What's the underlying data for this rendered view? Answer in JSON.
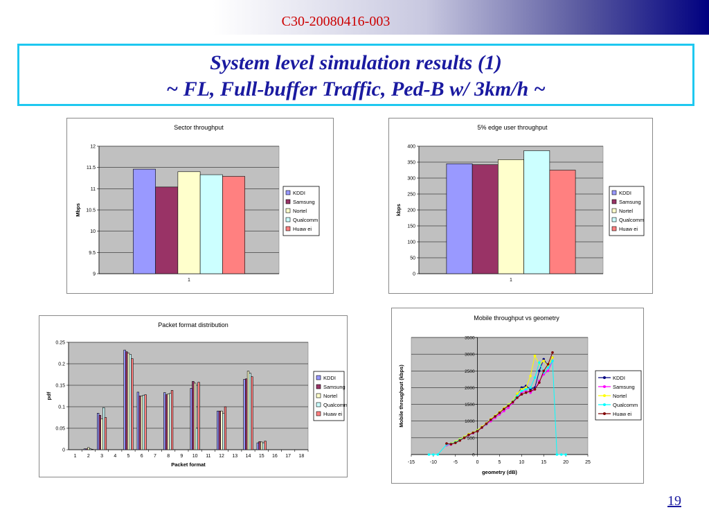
{
  "slide": {
    "doc_id": "C30-20080416-003",
    "title_line1": "System level simulation results (1)",
    "title_line2": "~ FL, Full-buffer Traffic, Ped-B w/ 3km/h ~",
    "page_number": "19"
  },
  "colors": {
    "KDDI": "#9999ff",
    "Samsung": "#993366",
    "Nortel": "#ffffcc",
    "Qualcomm": "#ccffff",
    "Huawei": "#ff8080",
    "plot_bg": "#c0c0c0",
    "title_border": "#1ec8f0",
    "title_text": "#1a1aa0",
    "doc_id_text": "#cc0000",
    "line_KDDI": "#000080",
    "line_Samsung": "#ff00ff",
    "line_Nortel": "#ffff00",
    "line_Qualcomm": "#00ffff",
    "line_Huawei": "#800000"
  },
  "chart_data": [
    {
      "id": "sector",
      "type": "bar",
      "title": "Sector throughput",
      "xlabel": "",
      "ylabel": "Mbps",
      "categories": [
        "1"
      ],
      "ylim": [
        9,
        12
      ],
      "yticks": [
        "9",
        "9.5",
        "10",
        "10.5",
        "11",
        "11.5",
        "12"
      ],
      "grid": true,
      "legend": "right",
      "series": [
        {
          "name": "KDDI",
          "values": [
            11.46
          ]
        },
        {
          "name": "Samsung",
          "values": [
            11.04
          ]
        },
        {
          "name": "Nortel",
          "values": [
            11.4
          ]
        },
        {
          "name": "Qualcomm",
          "values": [
            11.33
          ]
        },
        {
          "name": "Huaw ei",
          "values": [
            11.29
          ]
        }
      ]
    },
    {
      "id": "edge",
      "type": "bar",
      "title": "5% edge user throughput",
      "xlabel": "",
      "ylabel": "kbps",
      "categories": [
        "1"
      ],
      "ylim": [
        0,
        400
      ],
      "yticks": [
        "0",
        "50",
        "100",
        "150",
        "200",
        "250",
        "300",
        "350",
        "400"
      ],
      "grid": true,
      "legend": "right",
      "series": [
        {
          "name": "KDDI",
          "values": [
            345
          ]
        },
        {
          "name": "Samsung",
          "values": [
            342
          ]
        },
        {
          "name": "Nortel",
          "values": [
            358
          ]
        },
        {
          "name": "Qualcomm",
          "values": [
            386
          ]
        },
        {
          "name": "Huaw ei",
          "values": [
            325
          ]
        }
      ]
    },
    {
      "id": "packet",
      "type": "bar",
      "title": "Packet format distribution",
      "xlabel": "Packet format",
      "ylabel": "pdf",
      "categories": [
        "1",
        "2",
        "3",
        "4",
        "5",
        "6",
        "7",
        "8",
        "9",
        "10",
        "11",
        "12",
        "13",
        "14",
        "15",
        "16",
        "17",
        "18"
      ],
      "ylim": [
        0,
        0.25
      ],
      "yticks": [
        "0",
        "0.05",
        "0.1",
        "0.15",
        "0.2",
        "0.25"
      ],
      "grid": true,
      "legend": "right",
      "series": [
        {
          "name": "KDDI",
          "values": [
            0,
            0.002,
            0.085,
            0,
            0.232,
            0.134,
            0,
            0.133,
            0,
            0.143,
            0,
            0.09,
            0,
            0.164,
            0.016,
            0,
            0,
            0
          ]
        },
        {
          "name": "Samsung",
          "values": [
            0,
            0.002,
            0.08,
            0,
            0.228,
            0.125,
            0,
            0.128,
            0,
            0.159,
            0,
            0.09,
            0,
            0.165,
            0.019,
            0,
            0,
            0
          ]
        },
        {
          "name": "Nortel",
          "values": [
            0,
            0.005,
            0.072,
            0,
            0.225,
            0.125,
            0,
            0.13,
            0,
            0.155,
            0,
            0.09,
            0,
            0.183,
            0.018,
            0,
            0,
            0
          ]
        },
        {
          "name": "Qualcomm",
          "values": [
            0,
            0.002,
            0.098,
            0,
            0.222,
            0.127,
            0,
            0.131,
            0,
            0.05,
            0,
            0.085,
            0,
            0.178,
            0.016,
            0,
            0,
            0
          ]
        },
        {
          "name": "Huaw ei",
          "values": [
            0,
            0.001,
            0.075,
            0,
            0.212,
            0.128,
            0,
            0.138,
            0,
            0.157,
            0,
            0.1,
            0,
            0.17,
            0.02,
            0,
            0,
            0
          ]
        }
      ]
    },
    {
      "id": "mobile",
      "type": "line",
      "title": "Mobile throughput vs geometry",
      "xlabel": "geometry (dB)",
      "ylabel": "Mobile throughput (kbps)",
      "xlim": [
        -15,
        25
      ],
      "ylim": [
        0,
        3500
      ],
      "xticks": [
        "-15",
        "-10",
        "-5",
        "0",
        "5",
        "10",
        "15",
        "20",
        "25"
      ],
      "yticks": [
        "0",
        "500",
        "1000",
        "1500",
        "2000",
        "2500",
        "3000",
        "3500"
      ],
      "grid": true,
      "legend": "right",
      "series": [
        {
          "name": "KDDI",
          "marker": "diamond",
          "x": [
            -7,
            -6,
            -5,
            -4,
            -3,
            -2,
            -1,
            0,
            1,
            2,
            3,
            4,
            5,
            6,
            7,
            8,
            9,
            10,
            11,
            12,
            13,
            14,
            15,
            16,
            17
          ],
          "y": [
            310,
            320,
            380,
            450,
            520,
            600,
            650,
            720,
            820,
            920,
            1050,
            1150,
            1260,
            1380,
            1480,
            1580,
            1800,
            2000,
            2050,
            1950,
            2000,
            2500,
            2850,
            2650,
            2900
          ]
        },
        {
          "name": "Samsung",
          "marker": "square",
          "x": [
            -7,
            -6,
            -5,
            -4,
            -3,
            -2,
            -1,
            0,
            1,
            2,
            3,
            4,
            5,
            6,
            7,
            8,
            9,
            10,
            11,
            12,
            13,
            14,
            15,
            16,
            17
          ],
          "y": [
            280,
            300,
            360,
            430,
            500,
            580,
            640,
            700,
            800,
            900,
            1000,
            1100,
            1200,
            1300,
            1400,
            1550,
            1700,
            1850,
            1900,
            1850,
            1950,
            2200,
            2400,
            2500,
            2800
          ]
        },
        {
          "name": "Nortel",
          "marker": "triangle",
          "x": [
            -7,
            -6,
            -5,
            -4,
            -3,
            -2,
            -1,
            0,
            1,
            2,
            3,
            4,
            5,
            6,
            7,
            8,
            9,
            10,
            11,
            12,
            13,
            14,
            15,
            16,
            17
          ],
          "y": [
            300,
            330,
            390,
            460,
            530,
            610,
            660,
            730,
            830,
            930,
            1060,
            1160,
            1270,
            1390,
            1490,
            1600,
            1820,
            1950,
            2000,
            2350,
            2950,
            2700,
            2800,
            2650,
            2900
          ]
        },
        {
          "name": "Qualcomm",
          "marker": "cross",
          "x": [
            -11,
            -10,
            -9,
            -7,
            -6,
            -5,
            -4,
            -3,
            -2,
            -1,
            0,
            1,
            2,
            3,
            4,
            5,
            6,
            7,
            8,
            9,
            10,
            11,
            12,
            13,
            14,
            15,
            16,
            17,
            18,
            19,
            20
          ],
          "y": [
            0,
            0,
            0,
            300,
            320,
            370,
            440,
            510,
            590,
            650,
            710,
            810,
            910,
            1040,
            1140,
            1250,
            1360,
            1470,
            1580,
            1750,
            1900,
            1950,
            2000,
            2300,
            2750,
            2450,
            2600,
            2800,
            0,
            0,
            0
          ]
        },
        {
          "name": "Huaw ei",
          "marker": "circle",
          "x": [
            -7,
            -6,
            -5,
            -4,
            -3,
            -2,
            -1,
            0,
            1,
            2,
            3,
            4,
            5,
            6,
            7,
            8,
            9,
            10,
            11,
            12,
            13,
            14,
            15,
            16,
            17
          ],
          "y": [
            330,
            310,
            350,
            420,
            500,
            590,
            650,
            700,
            810,
            920,
            1040,
            1140,
            1250,
            1360,
            1460,
            1570,
            1700,
            1800,
            1850,
            1900,
            1950,
            2150,
            2500,
            2700,
            3050
          ]
        }
      ]
    }
  ]
}
